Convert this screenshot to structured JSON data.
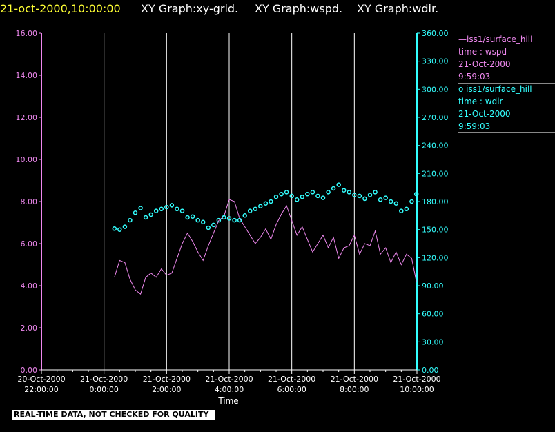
{
  "header": {
    "timestamp": "21-oct-2000,10:00:00",
    "graph_titles": [
      "XY Graph:xy-grid.",
      "XY Graph:wspd.",
      "XY Graph:wdir."
    ]
  },
  "legend": [
    {
      "marker": "—",
      "source": "iss1/surface_hill",
      "var": "time : wspd",
      "date": "21-Oct-2000",
      "time": "9:59:03",
      "color": "#ee88ee"
    },
    {
      "marker": "o",
      "source": "iss1/surface_hill",
      "var": "time : wdir",
      "date": "21-Oct-2000",
      "time": "9:59:03",
      "color": "#33ffff"
    }
  ],
  "footer": {
    "banner": "REAL-TIME DATA, NOT CHECKED FOR QUALITY"
  },
  "colors": {
    "background": "#000000",
    "left_axis": "#ee88ee",
    "right_axis": "#33ffff",
    "grid": "#ffffff",
    "axis_text": "#ffffff",
    "title_timestamp": "#ffff33"
  },
  "chart_data": {
    "type": "line",
    "xlabel": "Time",
    "x_range_hours": [
      -2,
      10
    ],
    "grid": "vertical lines every 2 hours",
    "x_ticks": [
      {
        "date": "20-Oct-2000",
        "time": "22:00:00"
      },
      {
        "date": "21-Oct-2000",
        "time": "0:00:00"
      },
      {
        "date": "21-Oct-2000",
        "time": "2:00:00"
      },
      {
        "date": "21-Oct-2000",
        "time": "4:00:00"
      },
      {
        "date": "21-Oct-2000",
        "time": "6:00:00"
      },
      {
        "date": "21-Oct-2000",
        "time": "8:00:00"
      },
      {
        "date": "21-Oct-2000",
        "time": "10:00:00"
      }
    ],
    "y_left": {
      "ylim": [
        0,
        16
      ],
      "ticks": [
        "0.00",
        "2.00",
        "4.00",
        "6.00",
        "8.00",
        "10.00",
        "12.00",
        "14.00",
        "16.00"
      ]
    },
    "y_right": {
      "ylim": [
        0,
        360
      ],
      "ticks": [
        "0.00",
        "30.00",
        "60.00",
        "90.00",
        "120.00",
        "150.00",
        "180.00",
        "210.00",
        "240.00",
        "270.00",
        "300.00",
        "330.00",
        "360.00"
      ]
    },
    "series": [
      {
        "name": "wspd",
        "axis": "left",
        "style": "line",
        "x": [
          "0:20",
          "0:30",
          "0:40",
          "0:50",
          "1:00",
          "1:10",
          "1:20",
          "1:30",
          "1:40",
          "1:50",
          "2:00",
          "2:10",
          "2:20",
          "2:30",
          "2:40",
          "2:50",
          "3:00",
          "3:10",
          "3:20",
          "3:30",
          "3:40",
          "3:50",
          "4:00",
          "4:10",
          "4:20",
          "4:30",
          "4:40",
          "4:50",
          "5:00",
          "5:10",
          "5:20",
          "5:30",
          "5:40",
          "5:50",
          "6:00",
          "6:10",
          "6:20",
          "6:30",
          "6:40",
          "6:50",
          "7:00",
          "7:10",
          "7:20",
          "7:30",
          "7:40",
          "7:50",
          "8:00",
          "8:10",
          "8:20",
          "8:30",
          "8:40",
          "8:50",
          "9:00",
          "9:10",
          "9:20",
          "9:30",
          "9:40",
          "9:50",
          "9:59"
        ],
        "values": [
          4.4,
          5.2,
          5.1,
          4.3,
          3.8,
          3.6,
          4.4,
          4.6,
          4.4,
          4.8,
          4.5,
          4.6,
          5.3,
          6.0,
          6.5,
          6.1,
          5.6,
          5.2,
          5.9,
          6.5,
          7.1,
          7.3,
          8.1,
          8.0,
          7.2,
          6.8,
          6.4,
          6.0,
          6.3,
          6.7,
          6.2,
          6.9,
          7.4,
          7.8,
          7.1,
          6.4,
          6.8,
          6.2,
          5.6,
          6.0,
          6.4,
          5.8,
          6.3,
          5.3,
          5.8,
          5.9,
          6.4,
          5.5,
          6.0,
          5.9,
          6.6,
          5.5,
          5.8,
          5.1,
          5.6,
          5.0,
          5.5,
          5.3,
          4.2
        ]
      },
      {
        "name": "wdir",
        "axis": "right",
        "style": "circles",
        "x": [
          "0:20",
          "0:30",
          "0:40",
          "0:50",
          "1:00",
          "1:10",
          "1:20",
          "1:30",
          "1:40",
          "1:50",
          "2:00",
          "2:10",
          "2:20",
          "2:30",
          "2:40",
          "2:50",
          "3:00",
          "3:10",
          "3:20",
          "3:30",
          "3:40",
          "3:50",
          "4:00",
          "4:10",
          "4:20",
          "4:30",
          "4:40",
          "4:50",
          "5:00",
          "5:10",
          "5:20",
          "5:30",
          "5:40",
          "5:50",
          "6:00",
          "6:10",
          "6:20",
          "6:30",
          "6:40",
          "6:50",
          "7:00",
          "7:10",
          "7:20",
          "7:30",
          "7:40",
          "7:50",
          "8:00",
          "8:10",
          "8:20",
          "8:30",
          "8:40",
          "8:50",
          "9:00",
          "9:10",
          "9:20",
          "9:30",
          "9:40",
          "9:50",
          "9:59"
        ],
        "values": [
          151,
          150,
          153,
          160,
          168,
          173,
          163,
          166,
          170,
          172,
          174,
          176,
          172,
          170,
          163,
          164,
          160,
          158,
          152,
          155,
          160,
          163,
          162,
          160,
          160,
          165,
          170,
          172,
          175,
          178,
          180,
          185,
          188,
          190,
          186,
          182,
          185,
          188,
          190,
          186,
          184,
          190,
          194,
          198,
          192,
          190,
          187,
          186,
          183,
          187,
          190,
          182,
          184,
          180,
          178,
          170,
          172,
          180,
          188
        ]
      }
    ]
  }
}
